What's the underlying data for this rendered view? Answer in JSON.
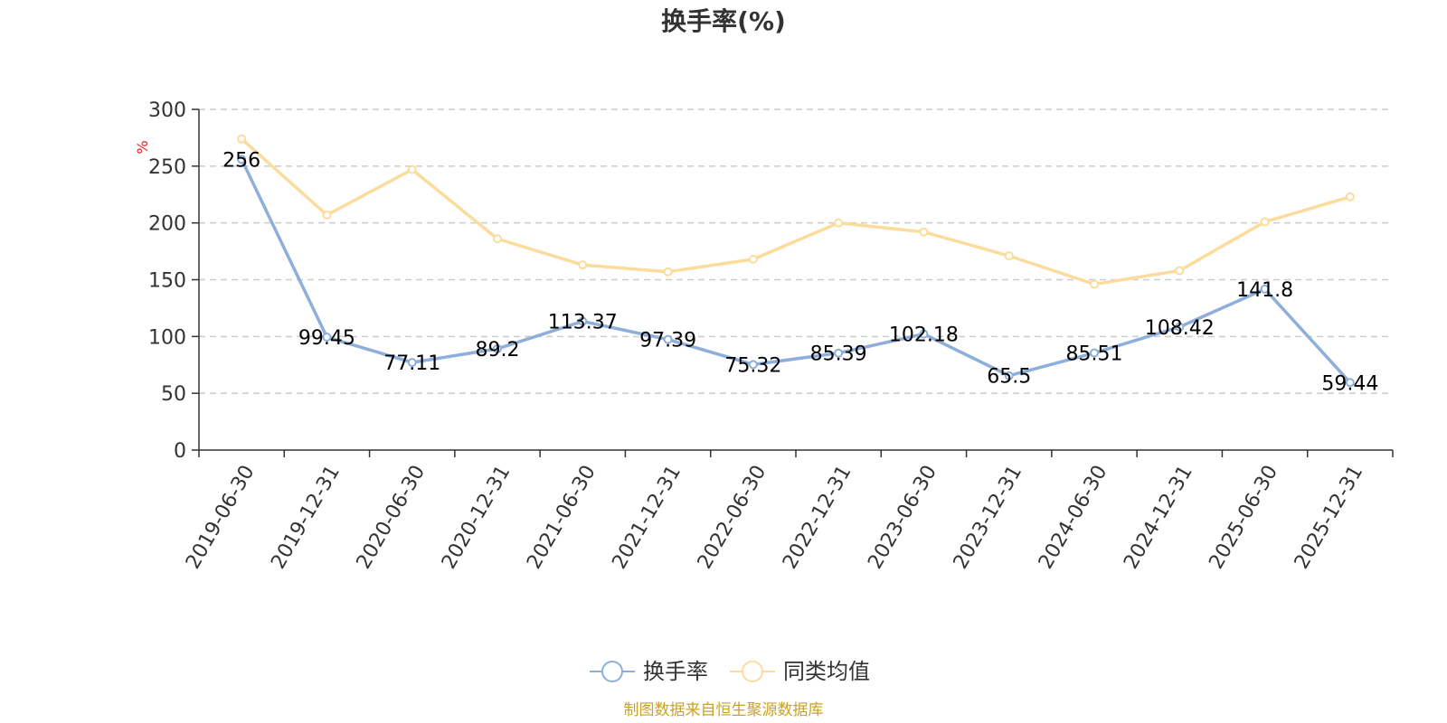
{
  "chart_data": {
    "type": "line",
    "title": "换手率(%)",
    "ylabel": "%",
    "ylim": [
      0,
      300
    ],
    "yticks": [
      0,
      50,
      100,
      150,
      200,
      250,
      300
    ],
    "categories": [
      "2019-06-30",
      "2019-12-31",
      "2020-06-30",
      "2020-12-31",
      "2021-06-30",
      "2021-12-31",
      "2022-06-30",
      "2022-12-31",
      "2023-06-30",
      "2023-12-31",
      "2024-06-30",
      "2024-12-31",
      "2025-06-30",
      "2025-12-31"
    ],
    "series": [
      {
        "name": "换手率",
        "color": "#8eaedb",
        "show_labels": true,
        "values": [
          256,
          99.45,
          77.11,
          89.2,
          113.37,
          97.39,
          75.32,
          85.39,
          102.18,
          65.5,
          85.51,
          108.42,
          141.8,
          59.44
        ]
      },
      {
        "name": "同类均值",
        "color": "#fcdc9c",
        "show_labels": false,
        "values": [
          274,
          207,
          247,
          186,
          163,
          157,
          168,
          200,
          192,
          171,
          146,
          158,
          201,
          223
        ]
      }
    ],
    "grid": true,
    "legend": "bottom-center",
    "source": "制图数据来自恒生聚源数据库",
    "unit_color": "#e02020",
    "source_color": "#c9a227"
  }
}
